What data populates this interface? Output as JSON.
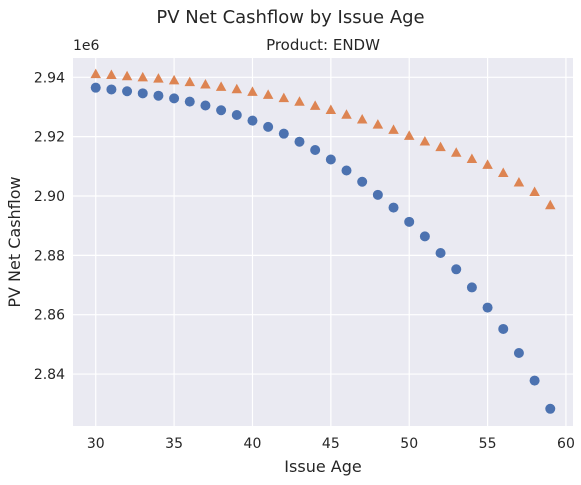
{
  "page_title": "PV Net Cashflow by Issue Age",
  "chart_data": {
    "type": "scatter",
    "title": "PV Net Cashflow by Issue Age",
    "subtitle": "Product: ENDW",
    "xlabel": "Issue Age",
    "ylabel": "PV Net Cashflow",
    "y_offset_label": "1e6",
    "xlim": [
      28.55,
      60.45
    ],
    "ylim": [
      2.8225,
      2.9465
    ],
    "x_ticks": [
      30,
      35,
      40,
      45,
      50,
      55,
      60
    ],
    "y_ticks": [
      2.84,
      2.86,
      2.88,
      2.9,
      2.92,
      2.94
    ],
    "y_tick_labels": [
      "2.84",
      "2.86",
      "2.88",
      "2.90",
      "2.92",
      "2.94"
    ],
    "grid": true,
    "legend": "none",
    "x": [
      30,
      31,
      32,
      33,
      34,
      35,
      36,
      37,
      38,
      39,
      40,
      41,
      42,
      43,
      44,
      45,
      46,
      47,
      48,
      49,
      50,
      51,
      52,
      53,
      54,
      55,
      56,
      57,
      58,
      59
    ],
    "series": [
      {
        "marker": "circle",
        "color": "#4c72b0",
        "values": [
          2.9365,
          2.9359,
          2.9353,
          2.9346,
          2.9338,
          2.9329,
          2.9318,
          2.9305,
          2.9289,
          2.9273,
          2.9254,
          2.9233,
          2.921,
          2.9183,
          2.9155,
          2.9123,
          2.9086,
          2.9048,
          2.9004,
          2.8961,
          2.8913,
          2.8864,
          2.8808,
          2.8753,
          2.8692,
          2.8624,
          2.8552,
          2.8471,
          2.8378,
          2.8283
        ]
      },
      {
        "marker": "triangle",
        "color": "#dd8452",
        "values": [
          2.941,
          2.9407,
          2.9403,
          2.9399,
          2.9395,
          2.9389,
          2.9383,
          2.9375,
          2.9367,
          2.9359,
          2.935,
          2.934,
          2.9329,
          2.9317,
          2.9303,
          2.9289,
          2.9273,
          2.9257,
          2.924,
          2.9222,
          2.9202,
          2.9183,
          2.9164,
          2.9145,
          2.9124,
          2.9104,
          2.9077,
          2.9045,
          2.9013,
          2.8968
        ]
      }
    ]
  }
}
